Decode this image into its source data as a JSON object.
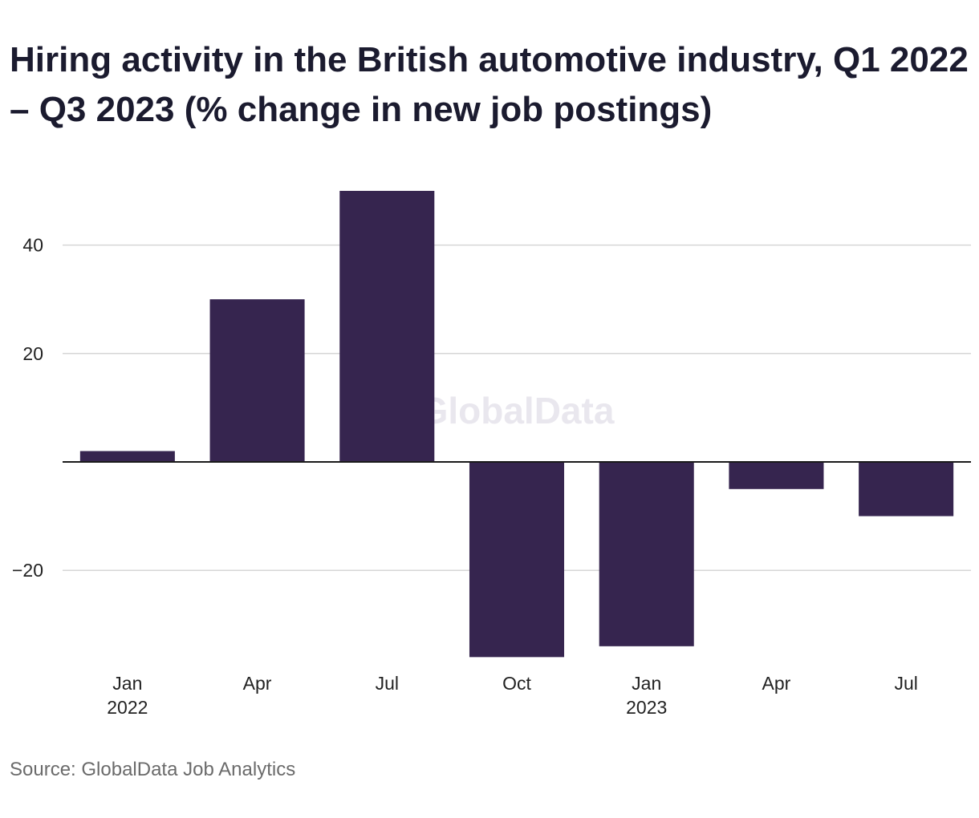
{
  "chart_data": {
    "type": "bar",
    "title": "Hiring activity in the British automotive industry, Q1 2022 – Q3 2023 (% change in new job postings)",
    "categories": [
      {
        "label": "Jan",
        "sublabel": "2022"
      },
      {
        "label": "Apr",
        "sublabel": ""
      },
      {
        "label": "Jul",
        "sublabel": ""
      },
      {
        "label": "Oct",
        "sublabel": ""
      },
      {
        "label": "Jan",
        "sublabel": "2023"
      },
      {
        "label": "Apr",
        "sublabel": ""
      },
      {
        "label": "Jul",
        "sublabel": ""
      }
    ],
    "values": [
      2,
      30,
      50,
      -36,
      -34,
      -5,
      -10
    ],
    "yticks": [
      -20,
      20,
      40
    ],
    "ylim": [
      -38,
      52
    ],
    "xlabel": "",
    "ylabel": "",
    "grid": true,
    "legend": "none",
    "bar_color": "#36254f",
    "source": "Source: GlobalData Job Analytics",
    "watermark": "GlobalData"
  }
}
